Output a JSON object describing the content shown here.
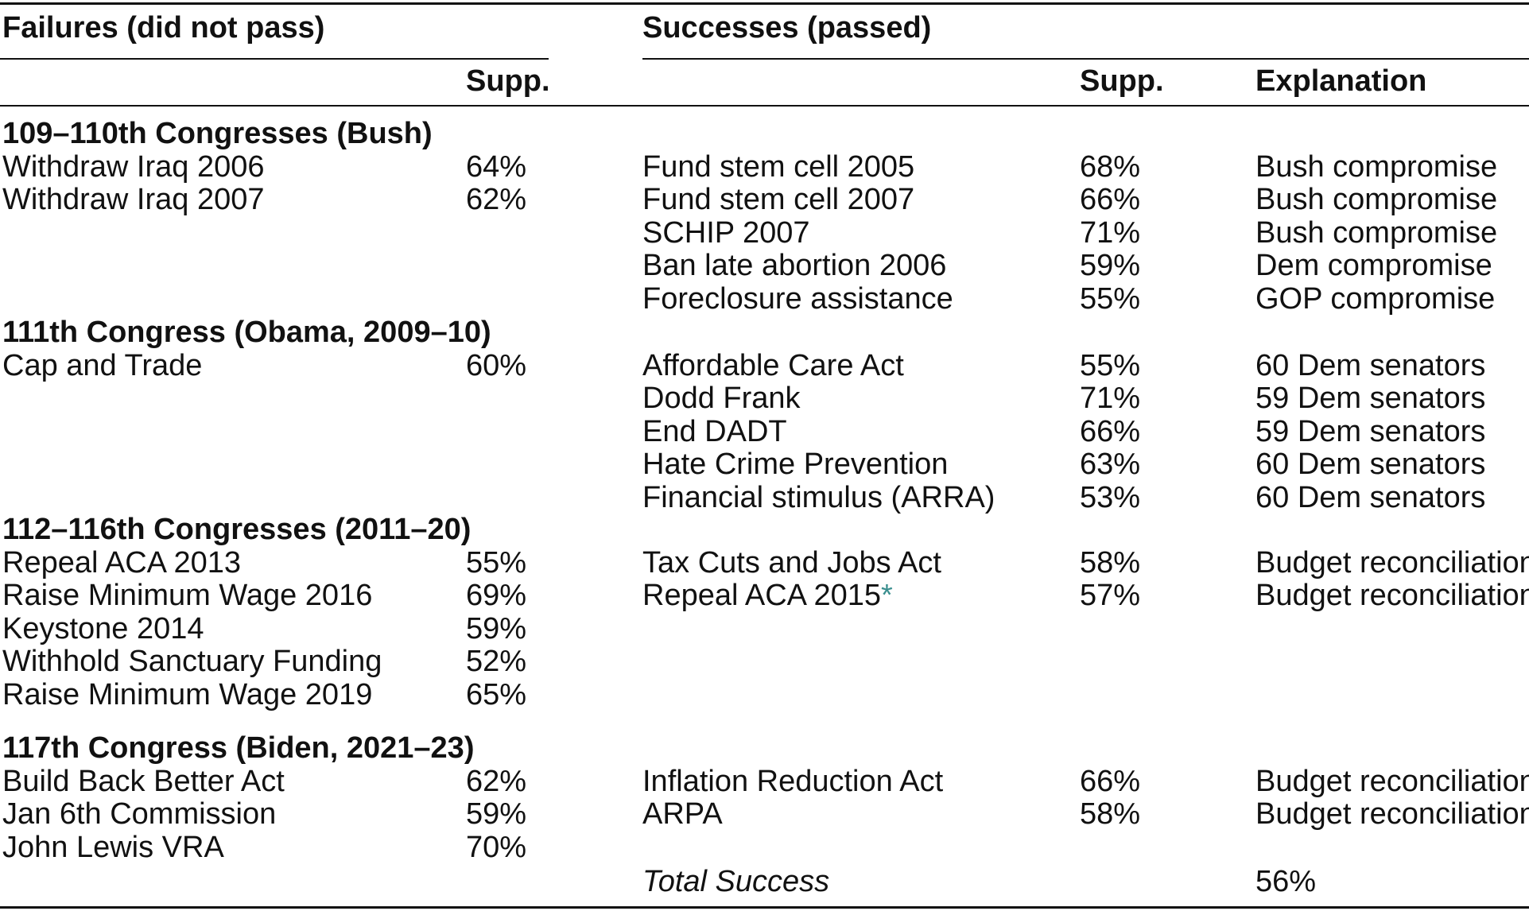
{
  "headers": {
    "failures": "Failures (did not pass)",
    "successes": "Successes (passed)",
    "supp_fail": "Supp.",
    "supp_succ": "Supp.",
    "explanation": "Explanation"
  },
  "groups": [
    {
      "title": "109–110th Congresses (Bush)",
      "failures": [
        {
          "name": "Withdraw Iraq 2006",
          "supp": "64%"
        },
        {
          "name": "Withdraw Iraq 2007",
          "supp": "62%"
        }
      ],
      "successes": [
        {
          "name": "Fund stem cell 2005",
          "supp": "68%",
          "explanation": "Bush compromise"
        },
        {
          "name": "Fund stem cell 2007",
          "supp": "66%",
          "explanation": "Bush compromise"
        },
        {
          "name": "SCHIP 2007",
          "supp": "71%",
          "explanation": "Bush compromise"
        },
        {
          "name": "Ban late abortion 2006",
          "supp": "59%",
          "explanation": "Dem compromise"
        },
        {
          "name": "Foreclosure assistance",
          "supp": "55%",
          "explanation": "GOP compromise"
        }
      ]
    },
    {
      "title": "111th Congress (Obama, 2009–10)",
      "failures": [
        {
          "name": "Cap and Trade",
          "supp": "60%"
        }
      ],
      "successes": [
        {
          "name": "Affordable Care Act",
          "supp": "55%",
          "explanation": "60 Dem senators"
        },
        {
          "name": "Dodd Frank",
          "supp": "71%",
          "explanation": "59 Dem senators"
        },
        {
          "name": "End DADT",
          "supp": "66%",
          "explanation": "59 Dem senators"
        },
        {
          "name": "Hate Crime Prevention",
          "supp": "63%",
          "explanation": "60 Dem senators"
        },
        {
          "name": "Financial stimulus (ARRA)",
          "supp": "53%",
          "explanation": "60 Dem senators"
        }
      ]
    },
    {
      "title": "112–116th Congresses (2011–20)",
      "failures": [
        {
          "name": "Repeal ACA 2013",
          "supp": "55%"
        },
        {
          "name": "Raise Minimum Wage 2016",
          "supp": "69%"
        },
        {
          "name": "Keystone 2014",
          "supp": "59%"
        },
        {
          "name": "Withhold Sanctuary Funding",
          "supp": "52%"
        },
        {
          "name": "Raise Minimum Wage 2019",
          "supp": "65%"
        }
      ],
      "successes": [
        {
          "name": "Tax Cuts and Jobs Act",
          "supp": "58%",
          "explanation": "Budget reconciliation"
        },
        {
          "name": "Repeal ACA 2015",
          "mark": "*",
          "supp": "57%",
          "explanation": "Budget reconciliation"
        }
      ]
    },
    {
      "title": "117th Congress (Biden, 2021–23)",
      "failures": [
        {
          "name": "Build Back Better Act",
          "supp": "62%"
        },
        {
          "name": "Jan 6th Commission",
          "supp": "59%"
        },
        {
          "name": "John Lewis VRA",
          "supp": "70%"
        }
      ],
      "successes": [
        {
          "name": "Inflation Reduction Act",
          "supp": "66%",
          "explanation": "Budget reconciliation"
        },
        {
          "name": "ARPA",
          "supp": "58%",
          "explanation": "Budget reconciliation"
        }
      ]
    }
  ],
  "total": {
    "label": "Total Success",
    "value": "56%"
  }
}
